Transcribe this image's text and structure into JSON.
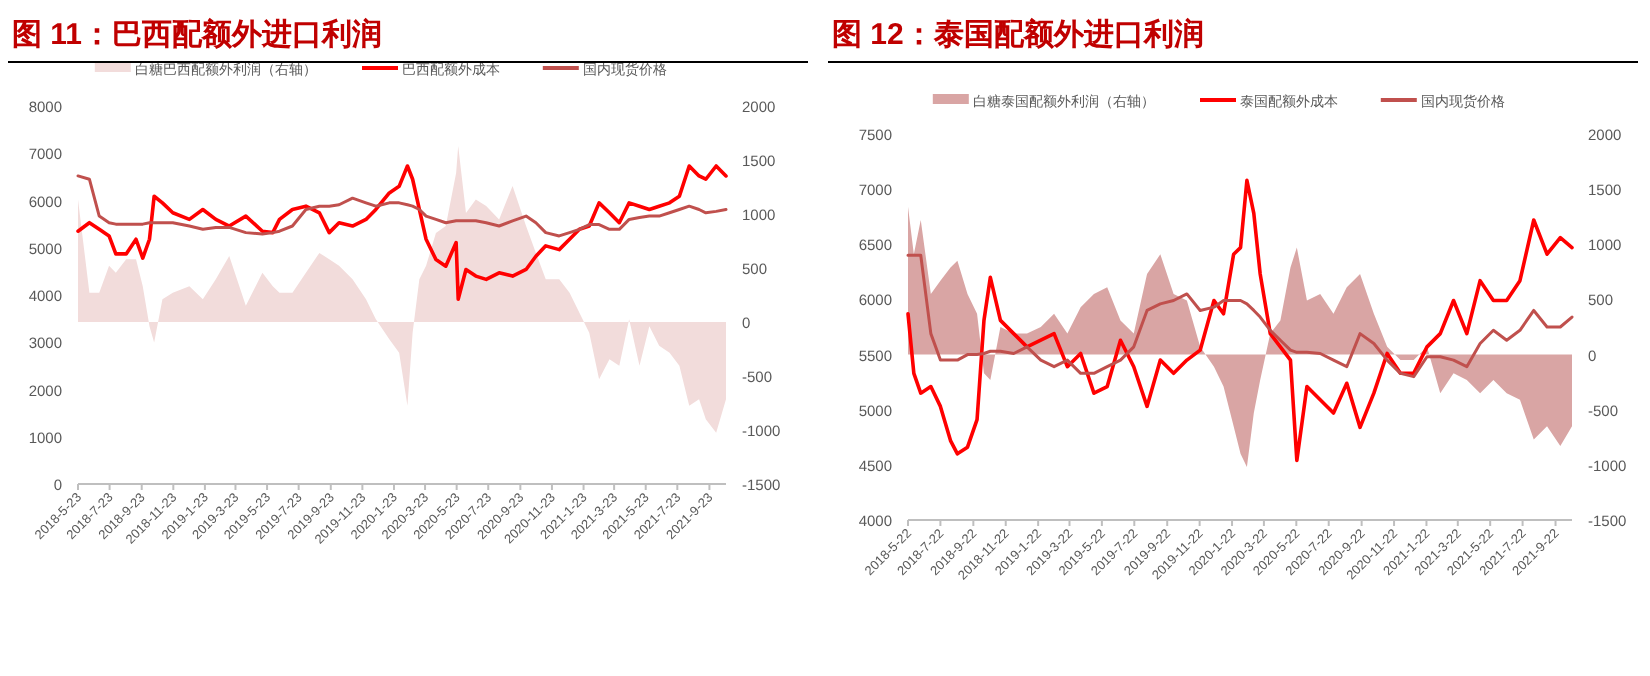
{
  "chart_data": [
    {
      "type": "line",
      "title": "图 11：巴西配额外进口利润",
      "legend": "top",
      "x": [
        "2018-05-23",
        "2018-06-14",
        "2018-07-03",
        "2018-07-22",
        "2018-08-04",
        "2018-08-24",
        "2018-09-12",
        "2018-09-25",
        "2018-10-08",
        "2018-10-17",
        "2018-11-02",
        "2018-11-22",
        "2018-12-24",
        "2019-01-19",
        "2019-02-13",
        "2019-03-11",
        "2019-04-12",
        "2019-05-14",
        "2019-06-03",
        "2019-06-16",
        "2019-07-11",
        "2019-08-06",
        "2019-09-01",
        "2019-09-20",
        "2019-10-09",
        "2019-11-04",
        "2019-11-30",
        "2019-12-19",
        "2020-01-14",
        "2020-02-02",
        "2020-02-18",
        "2020-02-28",
        "2020-03-12",
        "2020-03-25",
        "2020-04-13",
        "2020-05-02",
        "2020-05-22",
        "2020-05-26",
        "2020-06-10",
        "2020-06-29",
        "2020-07-19",
        "2020-08-13",
        "2020-09-08",
        "2020-10-04",
        "2020-10-23",
        "2020-11-11",
        "2020-12-07",
        "2020-12-27",
        "2021-01-15",
        "2021-02-03",
        "2021-02-22",
        "2021-03-14",
        "2021-04-02",
        "2021-04-21",
        "2021-05-11",
        "2021-05-30",
        "2021-06-18",
        "2021-07-08",
        "2021-07-27",
        "2021-08-15",
        "2021-09-03",
        "2021-09-16",
        "2021-10-06",
        "2021-10-25"
      ],
      "series": [
        {
          "name": "白糖巴西配额外利润（右轴）",
          "type": "area",
          "axis": "y2",
          "color": "#f2dcdb",
          "values": [
            1135,
            270,
            270,
            520,
            455,
            580,
            580,
            330,
            -40,
            -190,
            210,
            270,
            330,
            210,
            395,
            610,
            150,
            455,
            330,
            270,
            270,
            455,
            640,
            580,
            520,
            395,
            210,
            25,
            -160,
            -285,
            -775,
            -100,
            395,
            520,
            825,
            890,
            1380,
            1630,
            1010,
            1135,
            1075,
            950,
            1260,
            890,
            640,
            395,
            395,
            270,
            85,
            -100,
            -530,
            -345,
            -405,
            25,
            -405,
            -40,
            -220,
            -285,
            -405,
            -775,
            -715,
            -900,
            -1025,
            -715
          ]
        },
        {
          "name": "巴西配额外成本",
          "color": "#ff0000",
          "values": [
            5350,
            5530,
            5390,
            5250,
            4870,
            4870,
            5180,
            4780,
            5180,
            6090,
            5950,
            5740,
            5600,
            5810,
            5600,
            5460,
            5670,
            5350,
            5320,
            5600,
            5810,
            5880,
            5740,
            5320,
            5530,
            5460,
            5600,
            5810,
            6160,
            6300,
            6730,
            6450,
            5810,
            5180,
            4750,
            4610,
            5110,
            3910,
            4540,
            4400,
            4330,
            4470,
            4400,
            4540,
            4820,
            5040,
            4960,
            5180,
            5390,
            5460,
            5950,
            5740,
            5530,
            5950,
            5880,
            5810,
            5880,
            5950,
            6090,
            6730,
            6520,
            6450,
            6730,
            6520
          ]
        },
        {
          "name": "国内现货价格",
          "color": "#c0504d",
          "values": [
            6520,
            6450,
            5670,
            5530,
            5500,
            5500,
            5500,
            5500,
            5530,
            5530,
            5530,
            5530,
            5460,
            5390,
            5430,
            5430,
            5320,
            5290,
            5320,
            5350,
            5460,
            5810,
            5880,
            5880,
            5910,
            6050,
            5950,
            5880,
            5950,
            5950,
            5910,
            5880,
            5810,
            5670,
            5600,
            5530,
            5570,
            5570,
            5570,
            5570,
            5530,
            5460,
            5570,
            5670,
            5530,
            5320,
            5250,
            5320,
            5390,
            5490,
            5490,
            5390,
            5390,
            5600,
            5640,
            5670,
            5670,
            5740,
            5810,
            5880,
            5810,
            5740,
            5770,
            5810
          ]
        }
      ],
      "xlim": [
        "2018-05-23",
        "2021-10-25"
      ],
      "xticks": [
        {
          "value": "2018-05-23",
          "label": "2018-5-23"
        },
        {
          "value": "2018-07-23",
          "label": "2018-7-23"
        },
        {
          "value": "2018-09-23",
          "label": "2018-9-23"
        },
        {
          "value": "2018-11-23",
          "label": "2018-11-23"
        },
        {
          "value": "2019-01-23",
          "label": "2019-1-23"
        },
        {
          "value": "2019-03-23",
          "label": "2019-3-23"
        },
        {
          "value": "2019-05-23",
          "label": "2019-5-23"
        },
        {
          "value": "2019-07-23",
          "label": "2019-7-23"
        },
        {
          "value": "2019-09-23",
          "label": "2019-9-23"
        },
        {
          "value": "2019-11-23",
          "label": "2019-11-23"
        },
        {
          "value": "2020-01-23",
          "label": "2020-1-23"
        },
        {
          "value": "2020-03-23",
          "label": "2020-3-23"
        },
        {
          "value": "2020-05-23",
          "label": "2020-5-23"
        },
        {
          "value": "2020-07-23",
          "label": "2020-7-23"
        },
        {
          "value": "2020-09-23",
          "label": "2020-9-23"
        },
        {
          "value": "2020-11-23",
          "label": "2020-11-23"
        },
        {
          "value": "2021-01-23",
          "label": "2021-1-23"
        },
        {
          "value": "2021-03-23",
          "label": "2021-3-23"
        },
        {
          "value": "2021-05-23",
          "label": "2021-5-23"
        },
        {
          "value": "2021-07-23",
          "label": "2021-7-23"
        },
        {
          "value": "2021-09-23",
          "label": "2021-9-23"
        }
      ],
      "ylim": [
        0,
        8000
      ],
      "yticks": [
        0,
        1000,
        2000,
        3000,
        4000,
        5000,
        6000,
        7000,
        8000
      ],
      "y2lim": [
        -1500,
        2000
      ],
      "y2ticks": [
        -1500,
        -1000,
        -500,
        0,
        500,
        1000,
        1500,
        2000
      ]
    },
    {
      "type": "line",
      "title": "图 12：泰国配额外进口利润",
      "legend": "top",
      "x": [
        "2018-05-22",
        "2018-06-02",
        "2018-06-15",
        "2018-07-04",
        "2018-07-22",
        "2018-08-10",
        "2018-08-23",
        "2018-09-11",
        "2018-09-29",
        "2018-10-12",
        "2018-10-24",
        "2018-11-12",
        "2018-12-07",
        "2019-01-01",
        "2019-01-27",
        "2019-02-21",
        "2019-03-18",
        "2019-04-12",
        "2019-05-07",
        "2019-06-01",
        "2019-06-26",
        "2019-07-21",
        "2019-08-15",
        "2019-09-09",
        "2019-10-04",
        "2019-10-29",
        "2019-11-23",
        "2019-12-19",
        "2020-01-06",
        "2020-01-25",
        "2020-02-07",
        "2020-02-19",
        "2020-03-03",
        "2020-03-15",
        "2020-04-03",
        "2020-04-22",
        "2020-05-11",
        "2020-05-23",
        "2020-06-11",
        "2020-07-06",
        "2020-07-31",
        "2020-08-25",
        "2020-09-19",
        "2020-10-15",
        "2020-11-09",
        "2020-12-04",
        "2020-12-29",
        "2021-01-23",
        "2021-02-17",
        "2021-03-14",
        "2021-04-08",
        "2021-05-03",
        "2021-05-28",
        "2021-06-22",
        "2021-07-17",
        "2021-08-12",
        "2021-09-06",
        "2021-10-01",
        "2021-10-23"
      ],
      "series": [
        {
          "name": "白糖泰国配额外利润（右轴）",
          "type": "area",
          "axis": "y2",
          "color": "#d9a5a4",
          "values": [
            1340,
            910,
            1220,
            550,
            670,
            790,
            850,
            550,
            370,
            -170,
            -230,
            250,
            190,
            190,
            250,
            370,
            190,
            430,
            550,
            610,
            310,
            190,
            730,
            910,
            550,
            490,
            70,
            -110,
            -290,
            -650,
            -900,
            -1020,
            -530,
            -230,
            190,
            310,
            790,
            970,
            490,
            550,
            370,
            610,
            730,
            370,
            70,
            -50,
            -50,
            70,
            -350,
            -170,
            -230,
            -350,
            -230,
            -350,
            -410,
            -770,
            -650,
            -830,
            -650
          ]
        },
        {
          "name": "泰国配额外成本",
          "color": "#ff0000",
          "values": [
            5870,
            5330,
            5150,
            5210,
            5030,
            4720,
            4600,
            4660,
            4910,
            5810,
            6200,
            5810,
            5690,
            5570,
            5630,
            5690,
            5390,
            5510,
            5150,
            5210,
            5630,
            5390,
            5030,
            5450,
            5330,
            5450,
            5540,
            5990,
            5870,
            6410,
            6470,
            7080,
            6780,
            6230,
            5690,
            5570,
            5450,
            4540,
            5210,
            5090,
            4970,
            5240,
            4840,
            5150,
            5510,
            5330,
            5330,
            5570,
            5690,
            5990,
            5690,
            6170,
            5990,
            5990,
            6170,
            6720,
            6410,
            6560,
            6470
          ]
        },
        {
          "name": "国内现货价格",
          "color": "#c0504d",
          "values": [
            6400,
            6400,
            6400,
            5690,
            5450,
            5450,
            5450,
            5500,
            5500,
            5510,
            5530,
            5530,
            5510,
            5570,
            5450,
            5390,
            5450,
            5330,
            5330,
            5390,
            5450,
            5570,
            5900,
            5960,
            5990,
            6050,
            5900,
            5930,
            5990,
            5990,
            5990,
            5960,
            5900,
            5840,
            5720,
            5630,
            5540,
            5520,
            5520,
            5510,
            5450,
            5390,
            5690,
            5600,
            5450,
            5330,
            5300,
            5480,
            5480,
            5450,
            5390,
            5600,
            5720,
            5630,
            5720,
            5900,
            5750,
            5750,
            5840
          ]
        }
      ],
      "xlim": [
        "2018-05-22",
        "2021-10-23"
      ],
      "xticks": [
        {
          "value": "2018-05-22",
          "label": "2018-5-22"
        },
        {
          "value": "2018-07-22",
          "label": "2018-7-22"
        },
        {
          "value": "2018-09-22",
          "label": "2018-9-22"
        },
        {
          "value": "2018-11-22",
          "label": "2018-11-22"
        },
        {
          "value": "2019-01-22",
          "label": "2019-1-22"
        },
        {
          "value": "2019-03-22",
          "label": "2019-3-22"
        },
        {
          "value": "2019-05-22",
          "label": "2019-5-22"
        },
        {
          "value": "2019-07-22",
          "label": "2019-7-22"
        },
        {
          "value": "2019-09-22",
          "label": "2019-9-22"
        },
        {
          "value": "2019-11-22",
          "label": "2019-11-22"
        },
        {
          "value": "2020-01-22",
          "label": "2020-1-22"
        },
        {
          "value": "2020-03-22",
          "label": "2020-3-22"
        },
        {
          "value": "2020-05-22",
          "label": "2020-5-22"
        },
        {
          "value": "2020-07-22",
          "label": "2020-7-22"
        },
        {
          "value": "2020-09-22",
          "label": "2020-9-22"
        },
        {
          "value": "2020-11-22",
          "label": "2020-11-22"
        },
        {
          "value": "2021-01-22",
          "label": "2021-1-22"
        },
        {
          "value": "2021-03-22",
          "label": "2021-3-22"
        },
        {
          "value": "2021-05-22",
          "label": "2021-5-22"
        },
        {
          "value": "2021-07-22",
          "label": "2021-7-22"
        },
        {
          "value": "2021-09-22",
          "label": "2021-9-22"
        }
      ],
      "ylim": [
        4000,
        7500
      ],
      "yticks": [
        4000,
        4500,
        5000,
        5500,
        6000,
        6500,
        7000,
        7500
      ],
      "y2lim": [
        -1500,
        2000
      ],
      "y2ticks": [
        -1500,
        -1000,
        -500,
        0,
        500,
        1000,
        1500,
        2000
      ]
    }
  ]
}
